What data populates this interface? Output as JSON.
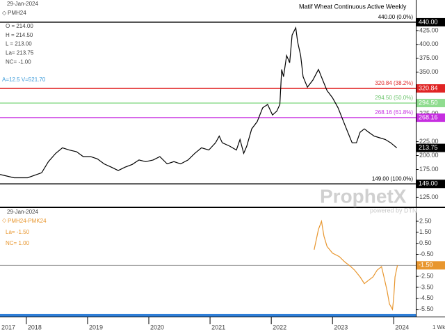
{
  "chart_data": [
    {
      "type": "line",
      "title": "Matif Wheat Continuous Active Weekly",
      "date": "29-Jan-2024",
      "info": [
        "O = 214.00",
        "H = 214.50",
        "L = 213.00",
        "La= 213.75",
        "NC= -1.00"
      ],
      "volume_info": "A=12.5 V=521.70",
      "watermark": "ProphetX",
      "watermark_sub": "powered by DTN",
      "x": [
        2017.57,
        2017.8,
        2018.02,
        2018.25,
        2018.36,
        2018.48,
        2018.59,
        2018.7,
        2018.82,
        2018.93,
        2019.05,
        2019.16,
        2019.27,
        2019.39,
        2019.5,
        2019.61,
        2019.73,
        2019.84,
        2019.95,
        2020.07,
        2020.18,
        2020.3,
        2020.41,
        2020.52,
        2020.64,
        2020.75,
        2020.86,
        2020.98,
        2021.09,
        2021.15,
        2021.2,
        2021.32,
        2021.43,
        2021.49,
        2021.55,
        2021.6,
        2021.68,
        2021.77,
        2021.86,
        2021.94,
        2022.02,
        2022.09,
        2022.14,
        2022.17,
        2022.2,
        2022.25,
        2022.3,
        2022.34,
        2022.4,
        2022.43,
        2022.48,
        2022.52,
        2022.59,
        2022.68,
        2022.77,
        2022.84,
        2022.91,
        2023.0,
        2023.09,
        2023.18,
        2023.25,
        2023.32,
        2023.39,
        2023.45,
        2023.52,
        2023.59,
        2023.68,
        2023.77,
        2023.86,
        2023.95,
        2024.05
      ],
      "series": [
        {
          "name": "PMH24",
          "color": "#000000",
          "last_label": "213.75",
          "values": [
            166,
            160,
            160,
            169,
            189,
            204,
            214,
            210,
            207,
            198,
            198,
            194,
            185,
            179,
            173,
            179,
            184,
            192,
            189,
            192,
            198,
            185,
            189,
            185,
            192,
            204,
            214,
            210,
            223,
            235,
            223,
            217,
            210,
            229,
            204,
            217,
            248,
            261,
            286,
            292,
            273,
            280,
            292,
            355,
            342,
            380,
            367,
            417,
            430,
            405,
            380,
            342,
            323,
            336,
            355,
            336,
            317,
            304,
            286,
            261,
            242,
            223,
            223,
            242,
            248,
            242,
            235,
            232,
            229,
            223,
            213.75
          ]
        }
      ],
      "xlim": [
        2017.57,
        2024.36
      ],
      "ylim": [
        108,
        480
      ],
      "yticks": [
        {
          "value": 125,
          "label": "125.00"
        },
        {
          "value": 175,
          "label": "175.00"
        },
        {
          "value": 200,
          "label": "200.00"
        },
        {
          "value": 225,
          "label": "225.00"
        },
        {
          "value": 275,
          "label": "275.00"
        },
        {
          "value": 350,
          "label": "350.00"
        },
        {
          "value": 375,
          "label": "375.00"
        },
        {
          "value": 400,
          "label": "400.00"
        },
        {
          "value": 425,
          "label": "425.00"
        }
      ],
      "hlines": [
        {
          "value": 440,
          "label": "440.00 (0.0%)",
          "axis_label": "440.00",
          "color": "#000000"
        },
        {
          "value": 320.84,
          "label": "320.84 (38.2%)",
          "axis_label": "320.84",
          "color": "#e02424"
        },
        {
          "value": 294.5,
          "label": "294.50 (50.0%)",
          "axis_label": "294.50",
          "color": "#8fdc8f"
        },
        {
          "value": 268.16,
          "label": "268.16 (61.8%)",
          "axis_label": "268.16",
          "color": "#c62ee0"
        },
        {
          "value": 149,
          "label": "149.00 (100.0%)",
          "axis_label": "149.00",
          "color": "#000000"
        }
      ]
    },
    {
      "type": "line",
      "date": "29-Jan-2024",
      "info": [
        "La= -1.50",
        "NC= 1.00"
      ],
      "period": "1 Wk",
      "x": [
        2022.7,
        2022.77,
        2022.82,
        2022.86,
        2022.91,
        2023.0,
        2023.11,
        2023.2,
        2023.3,
        2023.36,
        2023.45,
        2023.52,
        2023.59,
        2023.66,
        2023.73,
        2023.8,
        2023.84,
        2023.89,
        2023.93,
        2023.98,
        2024.0,
        2024.02,
        2024.06
      ],
      "series": [
        {
          "name": "PMH24-PMK24",
          "color": "#e8962e",
          "last_label": "-1.50",
          "values": [
            -0.08,
            1.76,
            2.5,
            1.15,
            0.22,
            -0.39,
            -0.7,
            -1.19,
            -1.62,
            -1.93,
            -2.55,
            -3.16,
            -2.85,
            -2.55,
            -1.93,
            -1.62,
            -2.55,
            -3.78,
            -5.0,
            -5.5,
            -4.39,
            -2.55,
            -1.5
          ]
        }
      ],
      "xlim": [
        2017.57,
        2024.36
      ],
      "xticks": [
        2017,
        2018,
        2019,
        2020,
        2021,
        2022,
        2023,
        2024
      ],
      "ylim": [
        -5.9,
        3.7
      ],
      "yticks": [
        {
          "value": 2.5,
          "label": "2.50"
        },
        {
          "value": 1.5,
          "label": "1.50"
        },
        {
          "value": 0.5,
          "label": "0.50"
        },
        {
          "value": -0.5,
          "label": "-0.50"
        },
        {
          "value": -2.5,
          "label": "-2.50"
        },
        {
          "value": -3.5,
          "label": "-3.50"
        },
        {
          "value": -4.5,
          "label": "-4.50"
        },
        {
          "value": -5.5,
          "label": "-5.50"
        }
      ],
      "hlines": [
        {
          "value": -1.5,
          "color": "#999999"
        }
      ]
    }
  ]
}
